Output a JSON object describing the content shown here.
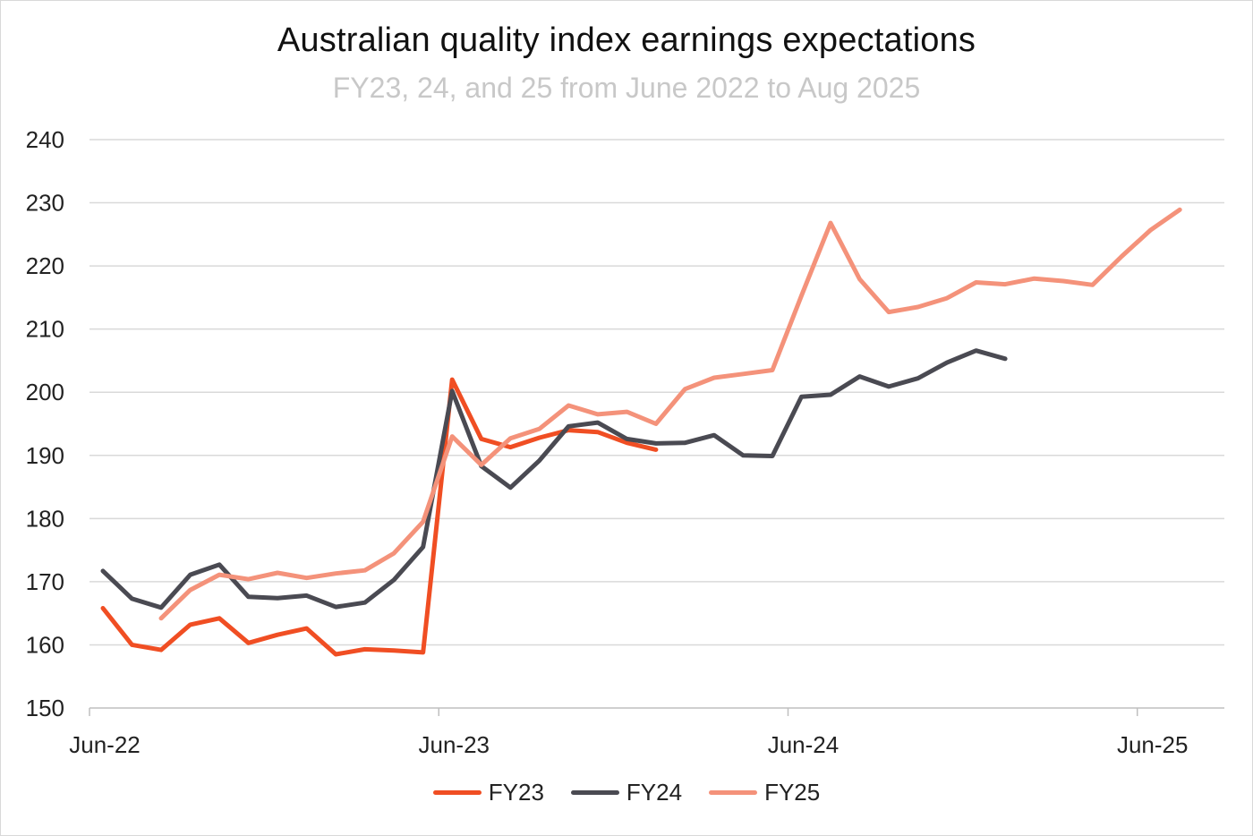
{
  "chart_data": {
    "type": "line",
    "title": "Australian quality index earnings expectations",
    "subtitle": "FY23, 24, and 25 from June 2022 to Aug 2025",
    "xlabel": "",
    "ylabel": "",
    "ylim": [
      150,
      240
    ],
    "yticks": [
      150,
      160,
      170,
      180,
      190,
      200,
      210,
      220,
      230,
      240
    ],
    "xlim": [
      "2022-06",
      "2025-09"
    ],
    "xticks": [
      "Jun-22",
      "Jun-23",
      "Jun-24",
      "Jun-25"
    ],
    "xtick_dates": [
      "2022-06",
      "2023-06",
      "2024-06",
      "2025-06"
    ],
    "grid": true,
    "legend_position": "bottom",
    "series": [
      {
        "name": "FY23",
        "color": "#f04e23",
        "x": [
          "2022-06",
          "2022-07",
          "2022-08",
          "2022-09",
          "2022-10",
          "2022-11",
          "2022-12",
          "2023-01",
          "2023-02",
          "2023-03",
          "2023-04",
          "2023-05",
          "2023-06",
          "2023-07",
          "2023-08",
          "2023-09",
          "2023-10",
          "2023-11",
          "2023-12",
          "2024-01",
          "2024-02"
        ],
        "values": [
          165.8,
          160.0,
          159.2,
          163.2,
          164.2,
          160.3,
          161.6,
          162.6,
          158.5,
          159.3,
          159.1,
          158.8,
          202.0,
          192.6,
          191.3,
          192.8,
          194.0,
          193.7,
          192.0,
          190.9,
          null
        ]
      },
      {
        "name": "FY24",
        "color": "#4a4a52",
        "x": [
          "2022-06",
          "2022-07",
          "2022-08",
          "2022-09",
          "2022-10",
          "2022-11",
          "2022-12",
          "2023-01",
          "2023-02",
          "2023-03",
          "2023-04",
          "2023-05",
          "2023-06",
          "2023-07",
          "2023-08",
          "2023-09",
          "2023-10",
          "2023-11",
          "2023-12",
          "2024-01",
          "2024-02",
          "2024-03",
          "2024-04",
          "2024-05",
          "2024-06",
          "2024-07",
          "2024-08",
          "2024-09",
          "2024-10",
          "2024-11",
          "2024-12",
          "2025-01",
          "2025-02"
        ],
        "values": [
          171.7,
          167.3,
          165.9,
          171.1,
          172.7,
          167.6,
          167.4,
          167.8,
          166.0,
          166.7,
          170.3,
          175.5,
          200.2,
          188.3,
          184.9,
          189.2,
          194.6,
          195.2,
          192.6,
          191.9,
          192.0,
          193.2,
          190.0,
          189.9,
          199.3,
          199.6,
          202.5,
          200.9,
          202.2,
          204.7,
          206.6,
          205.3,
          null
        ]
      },
      {
        "name": "FY25",
        "color": "#f4927a",
        "x": [
          "2022-08",
          "2022-09",
          "2022-10",
          "2022-11",
          "2022-12",
          "2023-01",
          "2023-02",
          "2023-03",
          "2023-04",
          "2023-05",
          "2023-06",
          "2023-07",
          "2023-08",
          "2023-09",
          "2023-10",
          "2023-11",
          "2023-12",
          "2024-01",
          "2024-02",
          "2024-03",
          "2024-04",
          "2024-05",
          "2024-06",
          "2024-07",
          "2024-08",
          "2024-09",
          "2024-10",
          "2024-11",
          "2024-12",
          "2025-01",
          "2025-02",
          "2025-03",
          "2025-04",
          "2025-05",
          "2025-06",
          "2025-07"
        ],
        "values": [
          164.2,
          168.7,
          171.1,
          170.4,
          171.4,
          170.6,
          171.3,
          171.8,
          174.5,
          179.5,
          193.0,
          188.5,
          192.7,
          194.2,
          197.9,
          196.5,
          196.9,
          195.0,
          200.5,
          202.3,
          202.9,
          203.5,
          215.3,
          226.8,
          217.9,
          212.7,
          213.5,
          214.9,
          217.4,
          217.1,
          218.0,
          217.6,
          217.0,
          221.5,
          225.7,
          228.9
        ]
      }
    ]
  }
}
